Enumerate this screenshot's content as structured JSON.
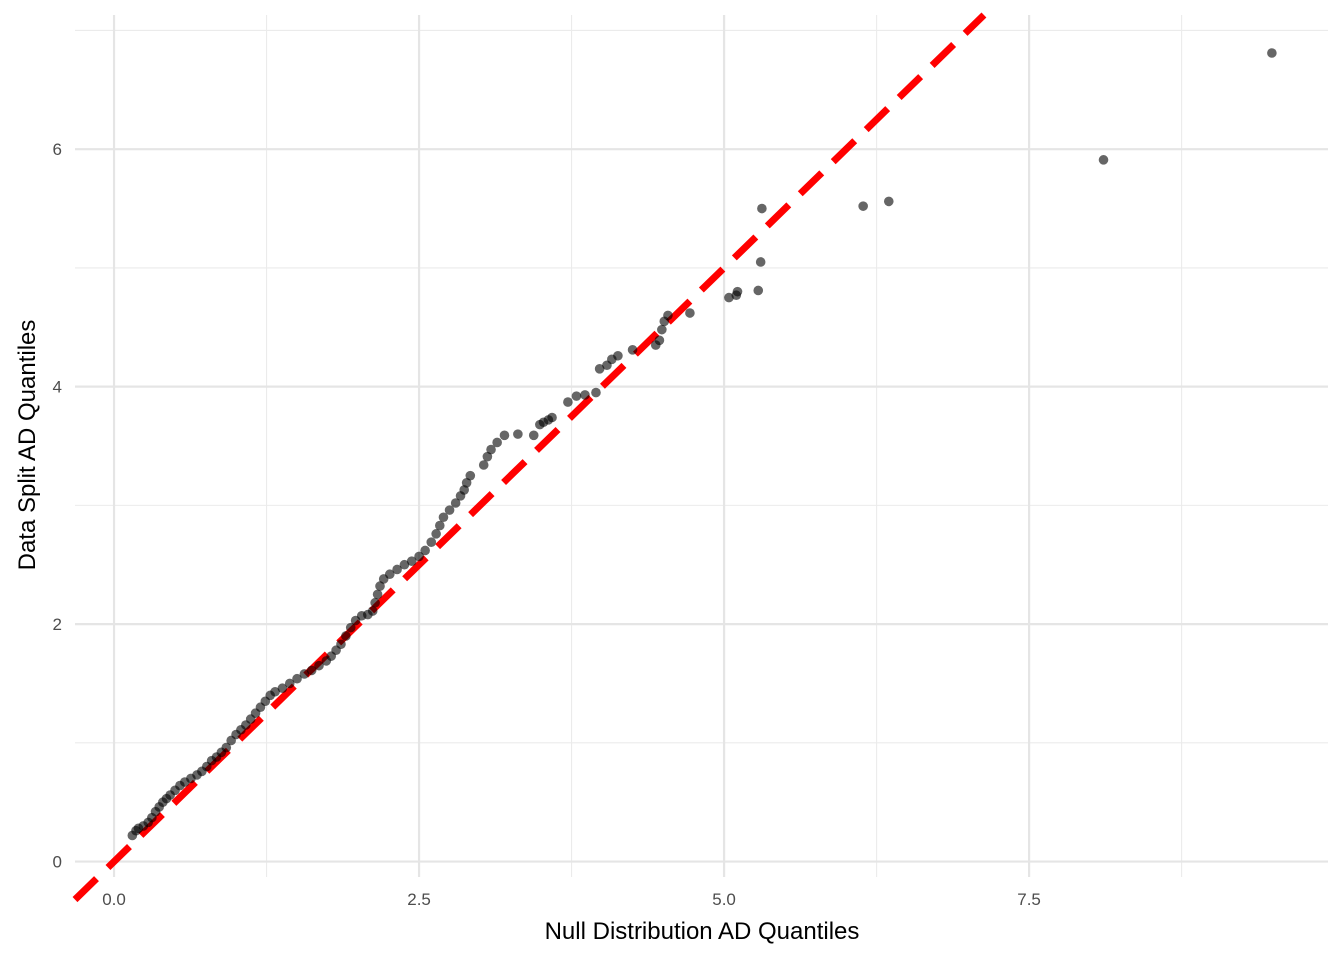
{
  "chart_data": {
    "type": "scatter",
    "title": "",
    "xlabel": "Null Distribution AD Quantiles",
    "ylabel": "Data Split AD Quantiles",
    "xlim": [
      -0.32,
      9.95
    ],
    "ylim": [
      -0.13,
      7.13
    ],
    "x_ticks": [
      0.0,
      2.5,
      5.0,
      7.5
    ],
    "x_tick_labels": [
      "0.0",
      "2.5",
      "5.0",
      "7.5"
    ],
    "y_ticks": [
      0,
      2,
      4,
      6
    ],
    "y_tick_labels": [
      "0",
      "2",
      "4",
      "6"
    ],
    "x_minor": [
      1.25,
      3.75,
      6.25,
      8.75
    ],
    "y_minor": [
      1,
      3,
      5,
      7
    ],
    "grid": true,
    "reference_line": {
      "intercept": 0,
      "slope": 1,
      "style": "dashed",
      "color": "#ff0000"
    },
    "point_color": "#000000",
    "point_alpha": 0.6,
    "points": [
      [
        0.15,
        0.22
      ],
      [
        0.18,
        0.26
      ],
      [
        0.2,
        0.28
      ],
      [
        0.24,
        0.3
      ],
      [
        0.28,
        0.33
      ],
      [
        0.31,
        0.37
      ],
      [
        0.34,
        0.42
      ],
      [
        0.37,
        0.46
      ],
      [
        0.4,
        0.5
      ],
      [
        0.43,
        0.53
      ],
      [
        0.46,
        0.56
      ],
      [
        0.5,
        0.6
      ],
      [
        0.54,
        0.64
      ],
      [
        0.58,
        0.67
      ],
      [
        0.63,
        0.7
      ],
      [
        0.68,
        0.73
      ],
      [
        0.72,
        0.76
      ],
      [
        0.76,
        0.8
      ],
      [
        0.8,
        0.85
      ],
      [
        0.84,
        0.88
      ],
      [
        0.88,
        0.92
      ],
      [
        0.92,
        0.96
      ],
      [
        0.96,
        1.02
      ],
      [
        1.0,
        1.07
      ],
      [
        1.04,
        1.11
      ],
      [
        1.08,
        1.15
      ],
      [
        1.12,
        1.2
      ],
      [
        1.16,
        1.25
      ],
      [
        1.2,
        1.3
      ],
      [
        1.24,
        1.35
      ],
      [
        1.28,
        1.4
      ],
      [
        1.32,
        1.43
      ],
      [
        1.38,
        1.46
      ],
      [
        1.44,
        1.5
      ],
      [
        1.5,
        1.54
      ],
      [
        1.56,
        1.58
      ],
      [
        1.62,
        1.61
      ],
      [
        1.68,
        1.65
      ],
      [
        1.74,
        1.69
      ],
      [
        1.78,
        1.73
      ],
      [
        1.82,
        1.78
      ],
      [
        1.86,
        1.83
      ],
      [
        1.9,
        1.9
      ],
      [
        1.94,
        1.97
      ],
      [
        1.98,
        2.03
      ],
      [
        2.03,
        2.07
      ],
      [
        2.08,
        2.08
      ],
      [
        2.12,
        2.11
      ],
      [
        2.14,
        2.18
      ],
      [
        2.16,
        2.25
      ],
      [
        2.18,
        2.32
      ],
      [
        2.21,
        2.38
      ],
      [
        2.26,
        2.42
      ],
      [
        2.32,
        2.46
      ],
      [
        2.38,
        2.5
      ],
      [
        2.44,
        2.53
      ],
      [
        2.5,
        2.57
      ],
      [
        2.55,
        2.62
      ],
      [
        2.6,
        2.69
      ],
      [
        2.64,
        2.76
      ],
      [
        2.67,
        2.83
      ],
      [
        2.7,
        2.9
      ],
      [
        2.75,
        2.96
      ],
      [
        2.8,
        3.02
      ],
      [
        2.84,
        3.08
      ],
      [
        2.87,
        3.13
      ],
      [
        2.89,
        3.19
      ],
      [
        2.92,
        3.25
      ],
      [
        3.03,
        3.34
      ],
      [
        3.06,
        3.41
      ],
      [
        3.09,
        3.47
      ],
      [
        3.14,
        3.53
      ],
      [
        3.2,
        3.59
      ],
      [
        3.31,
        3.6
      ],
      [
        3.44,
        3.59
      ],
      [
        3.49,
        3.68
      ],
      [
        3.52,
        3.7
      ],
      [
        3.56,
        3.72
      ],
      [
        3.59,
        3.74
      ],
      [
        3.72,
        3.87
      ],
      [
        3.79,
        3.92
      ],
      [
        3.86,
        3.93
      ],
      [
        3.95,
        3.95
      ],
      [
        3.98,
        4.15
      ],
      [
        4.04,
        4.18
      ],
      [
        4.08,
        4.23
      ],
      [
        4.13,
        4.26
      ],
      [
        4.25,
        4.31
      ],
      [
        4.44,
        4.35
      ],
      [
        4.47,
        4.39
      ],
      [
        4.49,
        4.48
      ],
      [
        4.51,
        4.55
      ],
      [
        4.54,
        4.6
      ],
      [
        4.72,
        4.62
      ],
      [
        5.04,
        4.75
      ],
      [
        5.1,
        4.77
      ],
      [
        5.11,
        4.8
      ],
      [
        5.28,
        4.81
      ],
      [
        5.3,
        5.05
      ],
      [
        5.31,
        5.5
      ],
      [
        6.14,
        5.52
      ],
      [
        6.35,
        5.56
      ],
      [
        8.11,
        5.91
      ],
      [
        9.49,
        6.81
      ]
    ]
  }
}
